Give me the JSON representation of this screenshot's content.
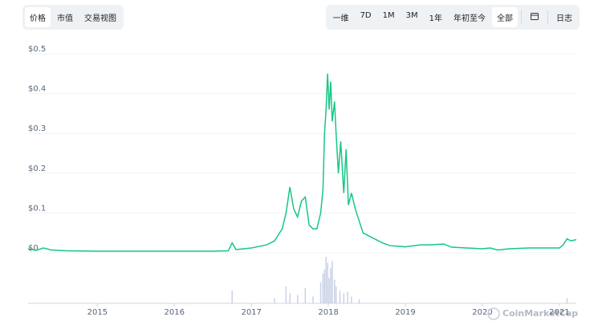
{
  "tabs_left": [
    "价格",
    "市值",
    "交易视图"
  ],
  "tabs_left_active": 0,
  "tabs_right": [
    "一维",
    "7D",
    "1M",
    "3M",
    "1年",
    "年初至今",
    "全部"
  ],
  "tabs_right_active": 6,
  "log_button": "日志",
  "chart_data": {
    "type": "line",
    "watermark": "CoinMarketCap",
    "xlim": [
      2014.1,
      2021.22
    ],
    "xticks": [
      2015,
      2016,
      2017,
      2018,
      2019,
      2020,
      2021
    ],
    "ylim": [
      0,
      0.5
    ],
    "yticks": [
      {
        "value": 0,
        "label": "$0"
      },
      {
        "value": 0.1,
        "label": "$0.1"
      },
      {
        "value": 0.2,
        "label": "$0.2"
      },
      {
        "value": 0.3,
        "label": "$0.3"
      },
      {
        "value": 0.4,
        "label": "$0.4"
      },
      {
        "value": 0.5,
        "label": "$0.5"
      }
    ],
    "grid": true,
    "series": [
      {
        "name": "价格",
        "color": "#16c784",
        "x": [
          2014.1,
          2014.2,
          2014.3,
          2014.4,
          2014.6,
          2015.0,
          2015.5,
          2016.0,
          2016.5,
          2016.7,
          2016.75,
          2016.8,
          2016.9,
          2017.0,
          2017.2,
          2017.3,
          2017.4,
          2017.45,
          2017.5,
          2017.55,
          2017.6,
          2017.65,
          2017.7,
          2017.75,
          2017.8,
          2017.85,
          2017.9,
          2017.93,
          2017.95,
          2017.97,
          2017.99,
          2018.01,
          2018.03,
          2018.05,
          2018.08,
          2018.1,
          2018.13,
          2018.16,
          2018.2,
          2018.23,
          2018.26,
          2018.3,
          2018.35,
          2018.4,
          2018.45,
          2018.55,
          2018.7,
          2018.8,
          2019.0,
          2019.2,
          2019.3,
          2019.5,
          2019.6,
          2019.8,
          2020.0,
          2020.1,
          2020.2,
          2020.35,
          2020.6,
          2021.0,
          2021.05,
          2021.1,
          2021.15,
          2021.22
        ],
        "values": [
          0.01,
          0.006,
          0.012,
          0.007,
          0.005,
          0.004,
          0.004,
          0.004,
          0.004,
          0.005,
          0.025,
          0.008,
          0.01,
          0.012,
          0.02,
          0.03,
          0.06,
          0.1,
          0.165,
          0.11,
          0.09,
          0.13,
          0.14,
          0.07,
          0.06,
          0.06,
          0.1,
          0.16,
          0.3,
          0.36,
          0.45,
          0.36,
          0.43,
          0.33,
          0.38,
          0.3,
          0.2,
          0.28,
          0.15,
          0.26,
          0.12,
          0.15,
          0.11,
          0.08,
          0.05,
          0.04,
          0.025,
          0.018,
          0.015,
          0.02,
          0.02,
          0.022,
          0.014,
          0.012,
          0.01,
          0.012,
          0.007,
          0.01,
          0.012,
          0.012,
          0.02,
          0.035,
          0.03,
          0.033
        ]
      }
    ],
    "volume": {
      "color": "#c9d1e6",
      "x": [
        2016.75,
        2017.3,
        2017.45,
        2017.5,
        2017.6,
        2017.7,
        2017.8,
        2017.9,
        2017.93,
        2017.95,
        2017.97,
        2017.99,
        2018.01,
        2018.03,
        2018.05,
        2018.08,
        2018.1,
        2018.15,
        2018.2,
        2018.25,
        2018.3,
        2018.4,
        2021.1
      ],
      "values": [
        15,
        6,
        20,
        12,
        10,
        18,
        8,
        25,
        35,
        40,
        55,
        48,
        30,
        42,
        50,
        28,
        20,
        15,
        12,
        14,
        8,
        5,
        6
      ]
    }
  }
}
